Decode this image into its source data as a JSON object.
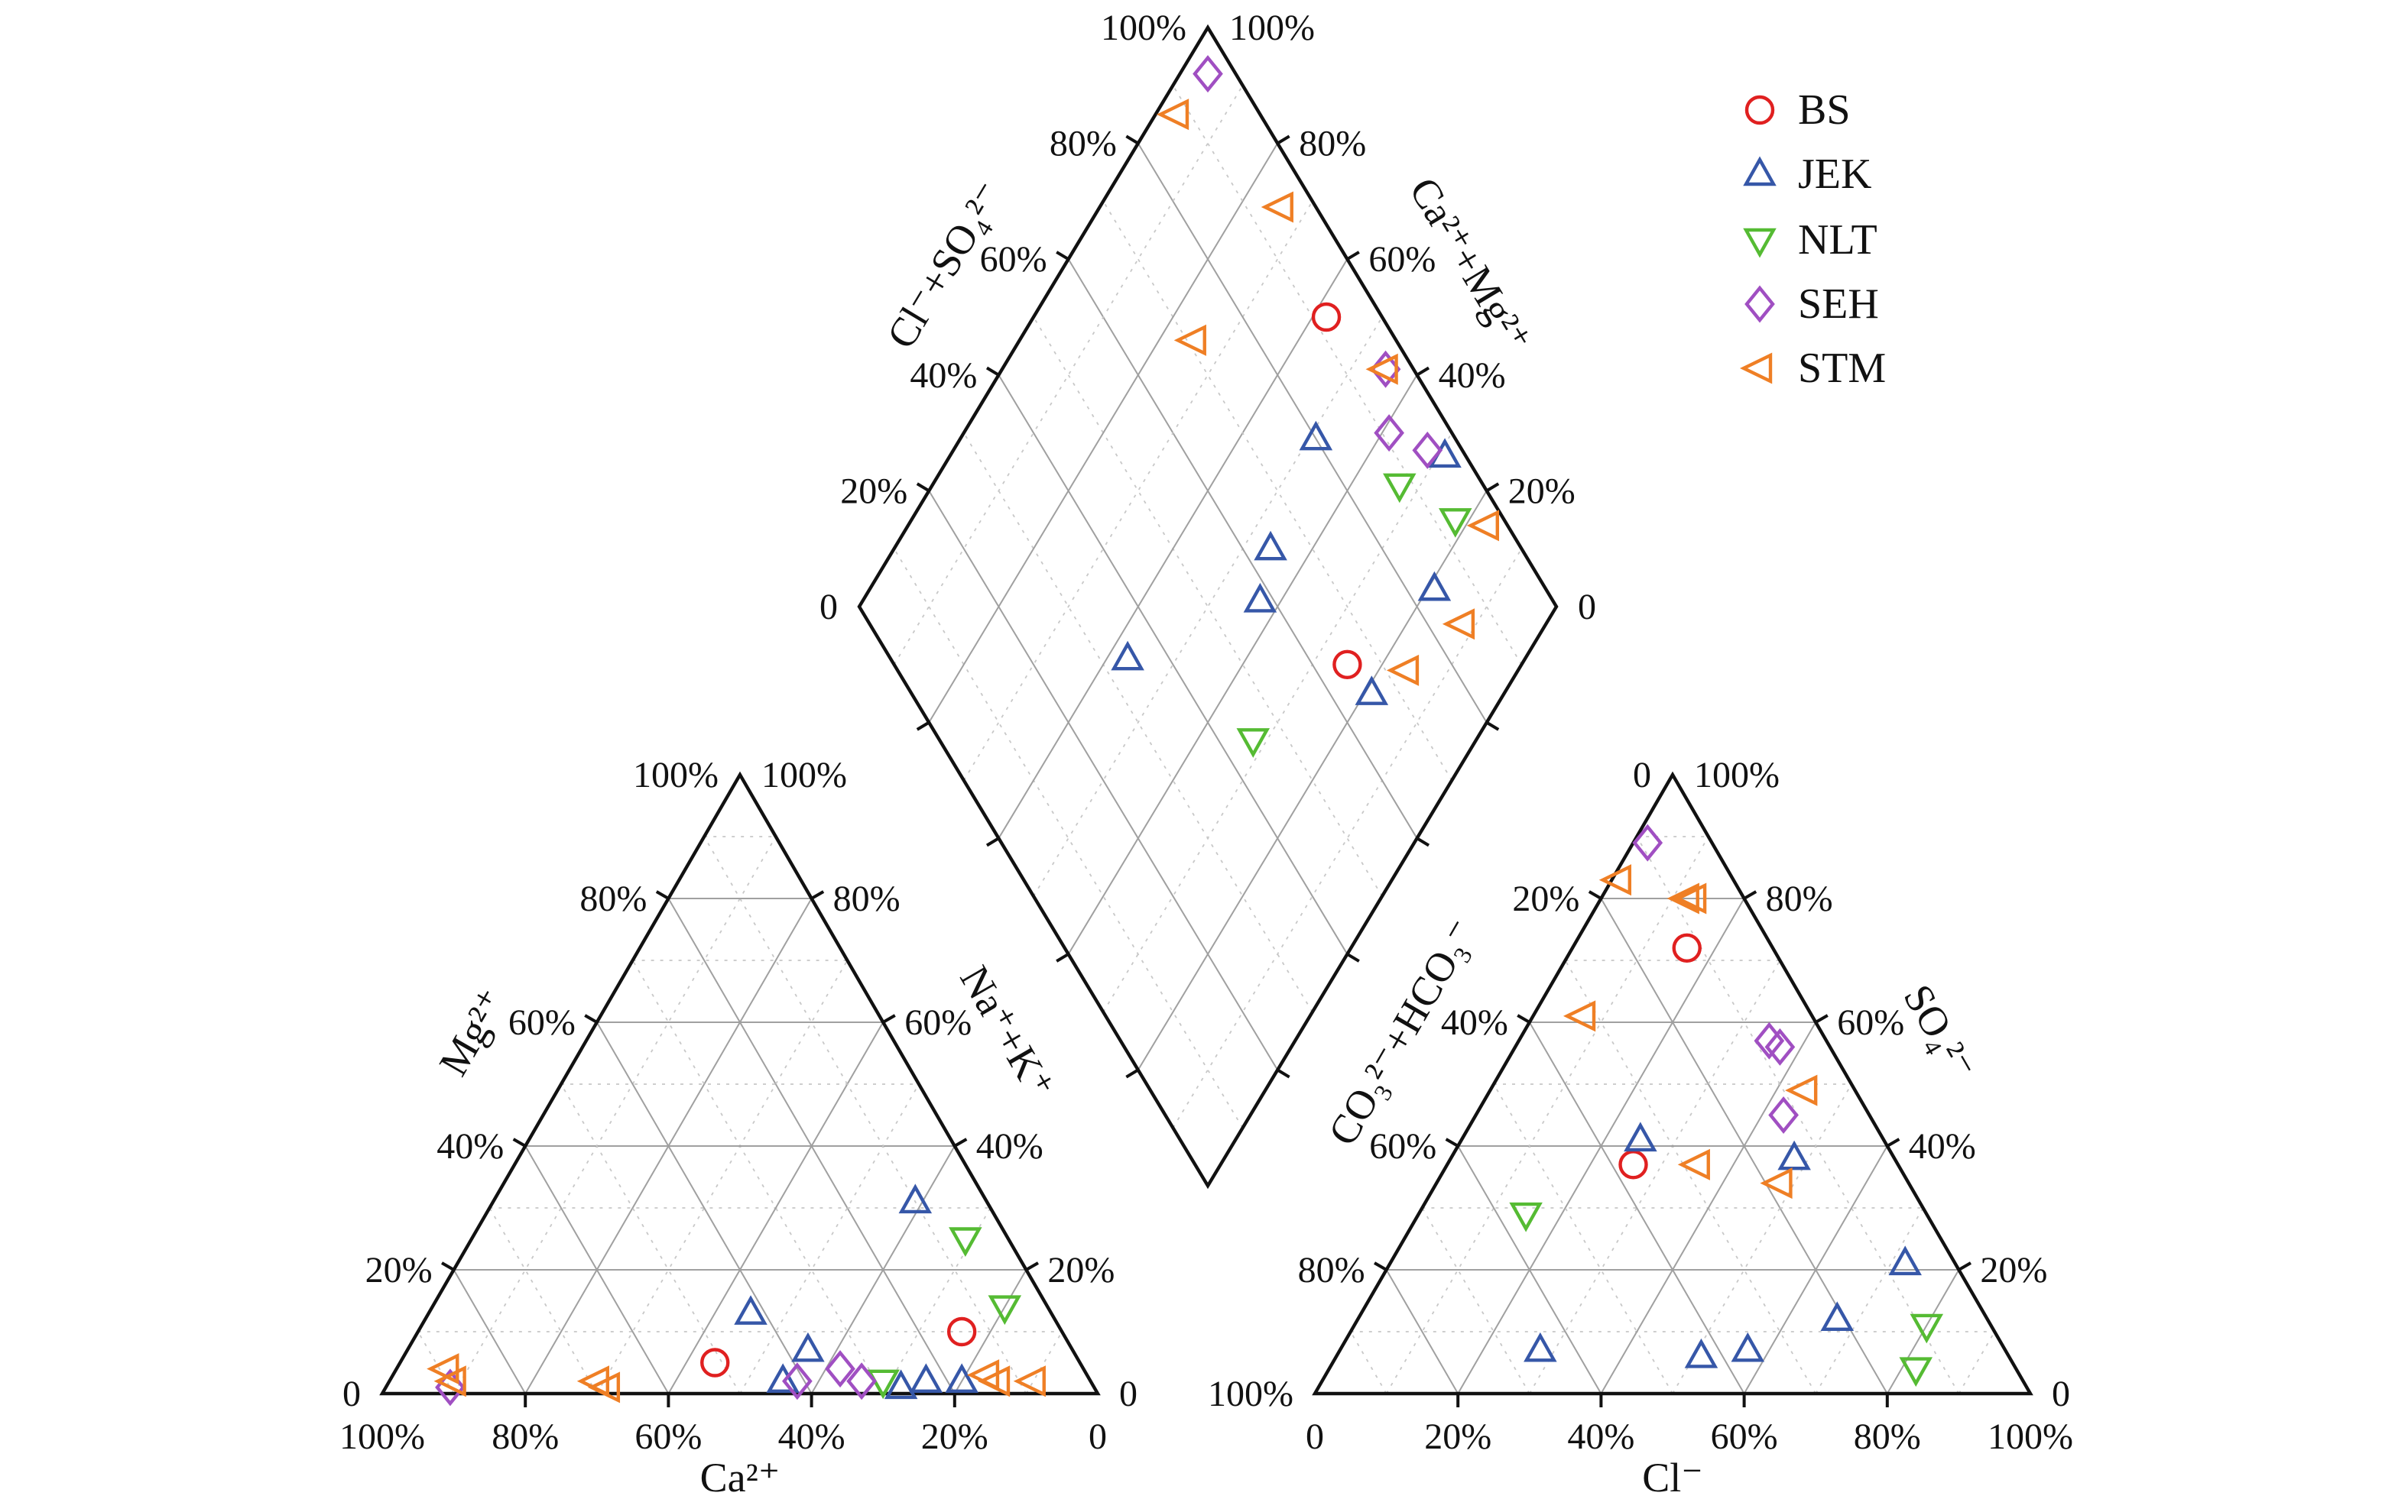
{
  "figure": {
    "background": "#ffffff",
    "text_color": "#111111"
  },
  "chart_data": {
    "type": "piper-trilinear",
    "grid": {
      "major_interval_pct": 20,
      "minor_interval_pct": 10,
      "major_color": "#a0a0a0",
      "minor_color": "#c8c8c8"
    },
    "axes": {
      "diamond": {
        "left": "Cl⁻+SO₄²⁻",
        "right": "Ca²⁺+Mg²⁺",
        "left_ticks_bottom_to_top": [
          "0",
          "20%",
          "40%",
          "60%",
          "80%",
          "100%"
        ],
        "right_ticks_top_to_bottom": [
          "100%",
          "80%",
          "60%",
          "40%",
          "20%",
          "0"
        ]
      },
      "cation_triangle": {
        "bottom": "Ca²⁺",
        "left": "Mg²⁺",
        "right": "Na⁺+K⁺",
        "bottom_ticks_left_to_right": [
          "100%",
          "80%",
          "60%",
          "40%",
          "20%",
          "0"
        ],
        "left_ticks_bottom_to_top": [
          "0",
          "20%",
          "40%",
          "60%",
          "80%",
          "100%"
        ],
        "right_ticks_top_to_bottom": [
          "100%",
          "80%",
          "60%",
          "40%",
          "20%",
          "0"
        ]
      },
      "anion_triangle": {
        "bottom": "Cl⁻",
        "left": "CO₃²⁻+HCO₃⁻",
        "right": "SO₄²⁻",
        "bottom_ticks_left_to_right": [
          "0",
          "20%",
          "40%",
          "60%",
          "80%",
          "100%"
        ],
        "left_ticks_bottom_to_top": [
          "100%",
          "80%",
          "60%",
          "40%",
          "20%",
          "0"
        ],
        "right_ticks_top_to_bottom": [
          "100%",
          "80%",
          "60%",
          "40%",
          "20%",
          "0"
        ]
      }
    },
    "series": [
      {
        "name": "BS",
        "marker": "circle",
        "color": "#e02020",
        "samples": [
          {
            "cation": {
              "ca": 51,
              "mg": 5,
              "na_k": 44
            },
            "anion": {
              "cl": 16,
              "co3_hco3": 12,
              "so4": 72
            },
            "diamond": {
              "ca_mg": 58,
              "cl_so4": 92
            }
          },
          {
            "cation": {
              "ca": 14,
              "mg": 10,
              "na_k": 76
            },
            "anion": {
              "cl": 26,
              "co3_hco3": 37,
              "so4": 37
            },
            "diamond": {
              "ca_mg": 25,
              "cl_so4": 65
            }
          }
        ]
      },
      {
        "name": "JEK",
        "marker": "triangle-up",
        "color": "#3657a8",
        "samples": [
          {
            "cation": {
              "ca": 42,
              "mg": 13,
              "na_k": 45
            },
            "anion": {
              "cl": 28,
              "co3_hco3": 65,
              "so4": 7
            },
            "diamond": {
              "ca_mg": 57,
              "cl_so4": 34
            }
          },
          {
            "cation": {
              "ca": 27,
              "mg": 1,
              "na_k": 72
            },
            "anion": {
              "cl": 72,
              "co3_hco3": 7,
              "so4": 21
            },
            "diamond": {
              "ca_mg": 29,
              "cl_so4": 97
            }
          },
          {
            "cation": {
              "ca": 43,
              "mg": 2,
              "na_k": 55
            },
            "anion": {
              "cl": 67,
              "co3_hco3": 21,
              "so4": 12
            },
            "diamond": {
              "ca_mg": 49,
              "cl_so4": 80
            }
          },
          {
            "cation": {
              "ca": 37,
              "mg": 7,
              "na_k": 56
            },
            "anion": {
              "cl": 57,
              "co3_hco3": 36,
              "so4": 7
            },
            "diamond": {
              "ca_mg": 46,
              "cl_so4": 64
            }
          },
          {
            "cation": {
              "ca": 10,
              "mg": 31,
              "na_k": 59
            },
            "anion": {
              "cl": 51,
              "co3_hco3": 43,
              "so4": 6
            },
            "diamond": {
              "ca_mg": 43,
              "cl_so4": 58
            }
          },
          {
            "cation": {
              "ca": 23,
              "mg": 2,
              "na_k": 75
            },
            "anion": {
              "cl": 48,
              "co3_hco3": 14,
              "so4": 38
            },
            "diamond": {
              "ca_mg": 19,
              "cl_so4": 84
            }
          },
          {
            "cation": {
              "ca": 18,
              "mg": 2,
              "na_k": 80
            },
            "anion": {
              "cl": 25,
              "co3_hco3": 34,
              "so4": 41
            },
            "diamond": {
              "ca_mg": 19,
              "cl_so4": 66
            }
          }
        ]
      },
      {
        "name": "NLT",
        "marker": "triangle-down",
        "color": "#55bb33",
        "samples": [
          {
            "cation": {
              "ca": 6,
              "mg": 25,
              "na_k": 69
            },
            "anion": {
              "cl": 15,
              "co3_hco3": 56,
              "so4": 29
            },
            "diamond": {
              "ca_mg": 32,
              "cl_so4": 45
            }
          },
          {
            "cation": {
              "ca": 6,
              "mg": 14,
              "na_k": 80
            },
            "anion": {
              "cl": 82,
              "co3_hco3": 14,
              "so4": 4
            },
            "diamond": {
              "ca_mg": 22,
              "cl_so4": 93
            }
          },
          {
            "cation": {
              "ca": 29,
              "mg": 2,
              "na_k": 69
            },
            "anion": {
              "cl": 80,
              "co3_hco3": 9,
              "so4": 11
            },
            "diamond": {
              "ca_mg": 33,
              "cl_so4": 88
            }
          }
        ]
      },
      {
        "name": "SEH",
        "marker": "diamond",
        "color": "#a04fc2",
        "samples": [
          {
            "cation": {
              "ca": 90,
              "mg": 1,
              "na_k": 9
            },
            "anion": {
              "cl": 2,
              "co3_hco3": 9,
              "so4": 89
            },
            "diamond": {
              "ca_mg": 96,
              "cl_so4": 96
            }
          },
          {
            "cation": {
              "ca": 41,
              "mg": 2,
              "na_k": 57
            },
            "anion": {
              "cl": 37,
              "co3_hco3": 7,
              "so4": 56
            },
            "diamond": {
              "ca_mg": 45,
              "cl_so4": 96
            }
          },
          {
            "cation": {
              "ca": 34,
              "mg": 4,
              "na_k": 62
            },
            "anion": {
              "cl": 35,
              "co3_hco3": 8,
              "so4": 57
            },
            "diamond": {
              "ca_mg": 39,
              "cl_so4": 91
            }
          },
          {
            "cation": {
              "ca": 32,
              "mg": 2,
              "na_k": 66
            },
            "anion": {
              "cl": 43,
              "co3_hco3": 12,
              "so4": 45
            },
            "diamond": {
              "ca_mg": 32,
              "cl_so4": 95
            }
          }
        ]
      },
      {
        "name": "STM",
        "marker": "triangle-left",
        "color": "#ef7f25",
        "samples": [
          {
            "cation": {
              "ca": 89,
              "mg": 4,
              "na_k": 7
            },
            "anion": {
              "cl": 1,
              "co3_hco3": 16,
              "so4": 83
            },
            "diamond": {
              "ca_mg": 97,
              "cl_so4": 88
            }
          },
          {
            "cation": {
              "ca": 89,
              "mg": 2,
              "na_k": 9
            },
            "anion": {
              "cl": 12,
              "co3_hco3": 8,
              "so4": 80
            },
            "diamond": {
              "ca_mg": 74,
              "cl_so4": 95
            }
          },
          {
            "cation": {
              "ca": 69,
              "mg": 2,
              "na_k": 29
            },
            "anion": {
              "cl": 13,
              "co3_hco3": 7,
              "so4": 80
            },
            "diamond": {
              "ca_mg": 75,
              "cl_so4": 71
            }
          },
          {
            "cation": {
              "ca": 68,
              "mg": 1,
              "na_k": 31
            },
            "anion": {
              "cl": 7,
              "co3_hco3": 32,
              "so4": 61
            },
            "diamond": {
              "ca_mg": 45,
              "cl_so4": 96
            }
          },
          {
            "cation": {
              "ca": 14,
              "mg": 3,
              "na_k": 83
            },
            "anion": {
              "cl": 44,
              "co3_hco3": 7,
              "so4": 49
            },
            "diamond": {
              "ca_mg": 17,
              "cl_so4": 97
            }
          },
          {
            "cation": {
              "ca": 13,
              "mg": 2,
              "na_k": 85
            },
            "anion": {
              "cl": 35,
              "co3_hco3": 28,
              "so4": 37
            },
            "diamond": {
              "ca_mg": 12,
              "cl_so4": 85
            }
          },
          {
            "cation": {
              "ca": 8,
              "mg": 2,
              "na_k": 90
            },
            "anion": {
              "cl": 48,
              "co3_hco3": 18,
              "so4": 34
            },
            "diamond": {
              "ca_mg": 16,
              "cl_so4": 73
            }
          }
        ]
      }
    ]
  }
}
